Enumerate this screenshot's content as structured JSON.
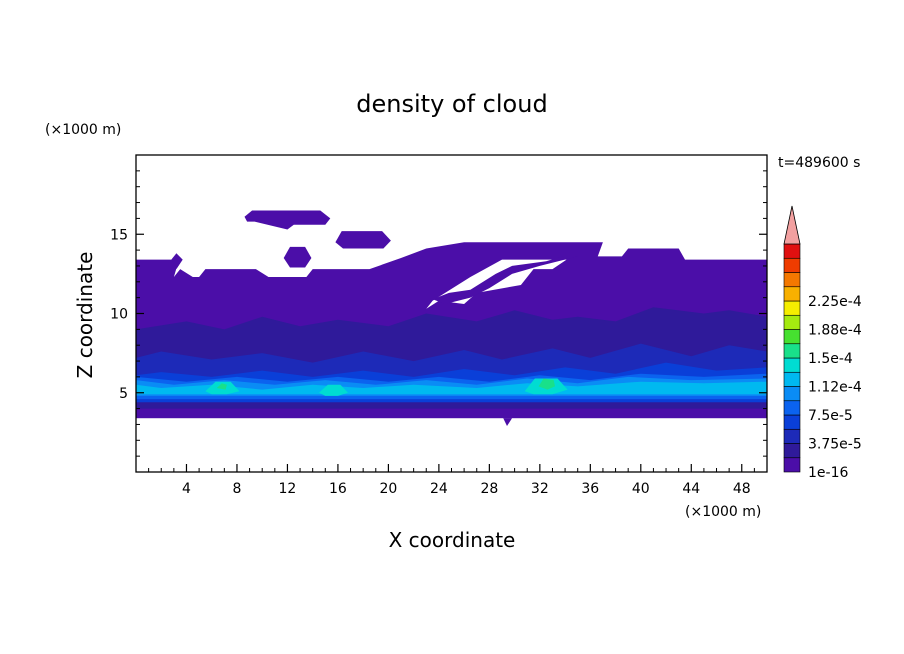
{
  "chart_data": {
    "type": "heatmap",
    "title": "density of cloud",
    "xlabel": "X coordinate",
    "ylabel": "Z coordinate",
    "x_unit": "(×1000 m)",
    "y_unit": "(×1000 m)",
    "time_label": "t=489600 s",
    "xlim": [
      0,
      50
    ],
    "ylim": [
      0,
      20
    ],
    "xticks": [
      4,
      8,
      12,
      16,
      20,
      24,
      28,
      32,
      36,
      40,
      44,
      48
    ],
    "yticks": [
      5,
      10,
      15
    ],
    "colorbar": {
      "levels": [
        1e-16,
        1.875e-05,
        3.75e-05,
        5.625e-05,
        7.5e-05,
        9.375e-05,
        0.0001125,
        0.00013125,
        0.00015,
        0.00016875,
        0.0001875,
        0.00020625,
        0.000225,
        0.00024375
      ],
      "colors": [
        "#4b0ea8",
        "#2f1a9a",
        "#1d2ab8",
        "#0a3fd8",
        "#0b63ef",
        "#0a8cf5",
        "#00b9f0",
        "#00dcd2",
        "#19e08a",
        "#46e030",
        "#a5ea10",
        "#f5ee00",
        "#f8b000",
        "#f47800",
        "#ef3c00",
        "#e01010"
      ],
      "extend_color": "#f2a0a0",
      "tick_labels": [
        "1e-16",
        "3.75e-5",
        "7.5e-5",
        "1.12e-4",
        "1.5e-4",
        "1.88e-4",
        "2.25e-4"
      ]
    }
  }
}
